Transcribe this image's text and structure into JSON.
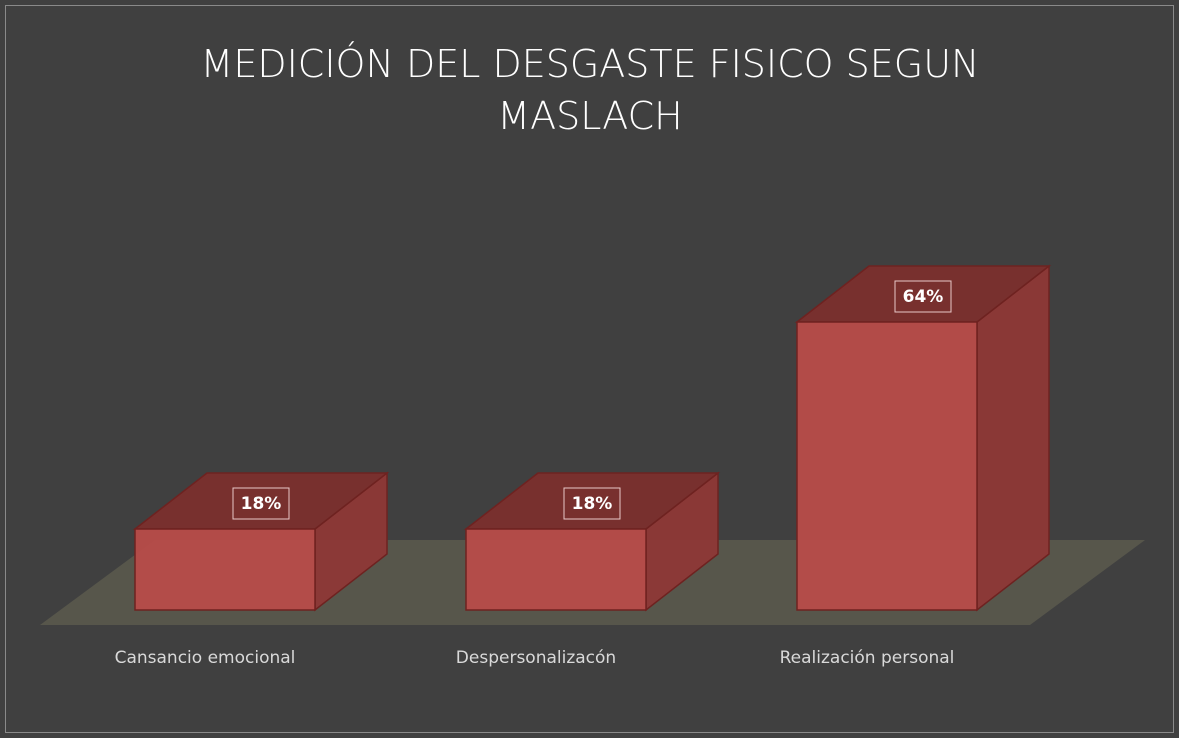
{
  "chart_data": {
    "type": "bar3d",
    "title": "MEDICIÓN DEL DESGASTE FISICO SEGUN MASLACH",
    "categories": [
      "Cansancio emocional",
      "Despersonalizacón",
      "Realización personal"
    ],
    "values": [
      18,
      18,
      64
    ],
    "value_labels": [
      "18%",
      "18%",
      "64%"
    ],
    "color": "#b84c49"
  }
}
